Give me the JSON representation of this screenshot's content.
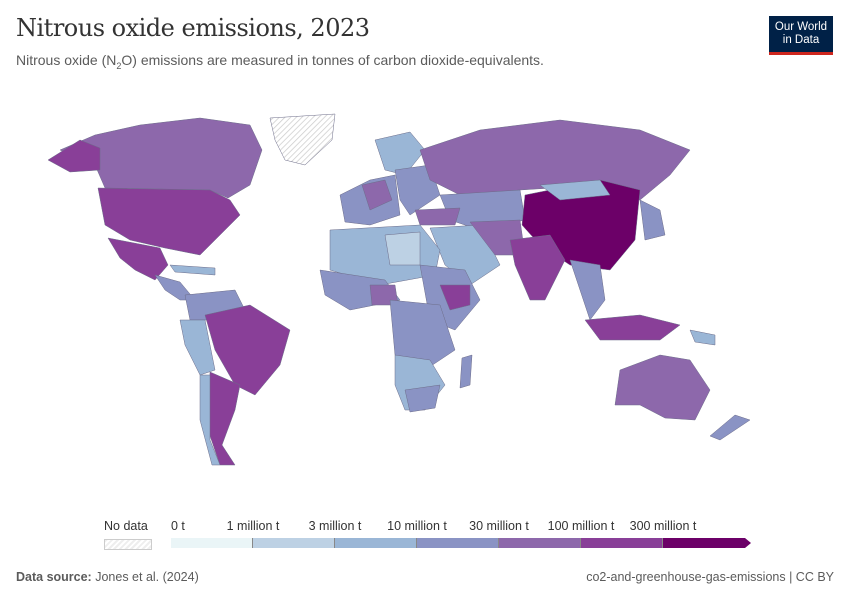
{
  "header": {
    "title": "Nitrous oxide emissions, 2023",
    "subtitle_pre": "Nitrous oxide (N",
    "subtitle_sub": "2",
    "subtitle_post": "O) emissions are measured in tonnes of carbon dioxide-equivalents.",
    "logo_line1": "Our World",
    "logo_line2": "in Data"
  },
  "legend": {
    "no_data_label": "No data",
    "bins": [
      {
        "label": "0 t",
        "color": "#eaf5f7"
      },
      {
        "label": "1 million t",
        "color": "#bdd1e4"
      },
      {
        "label": "3 million t",
        "color": "#9ab6d6"
      },
      {
        "label": "10 million t",
        "color": "#8a93c4"
      },
      {
        "label": "30 million t",
        "color": "#8d68ab"
      },
      {
        "label": "100 million t",
        "color": "#893f98"
      },
      {
        "label": "300 million t",
        "color": "#6c0068"
      }
    ]
  },
  "footer": {
    "source_label": "Data source:",
    "source": "Jones et al. (2024)",
    "slug": "co2-and-greenhouse-gas-emissions | CC BY"
  },
  "colors": {
    "no_data": "#eeeeee",
    "logo_bg": "#002147",
    "logo_accent": "#ce261e"
  }
}
